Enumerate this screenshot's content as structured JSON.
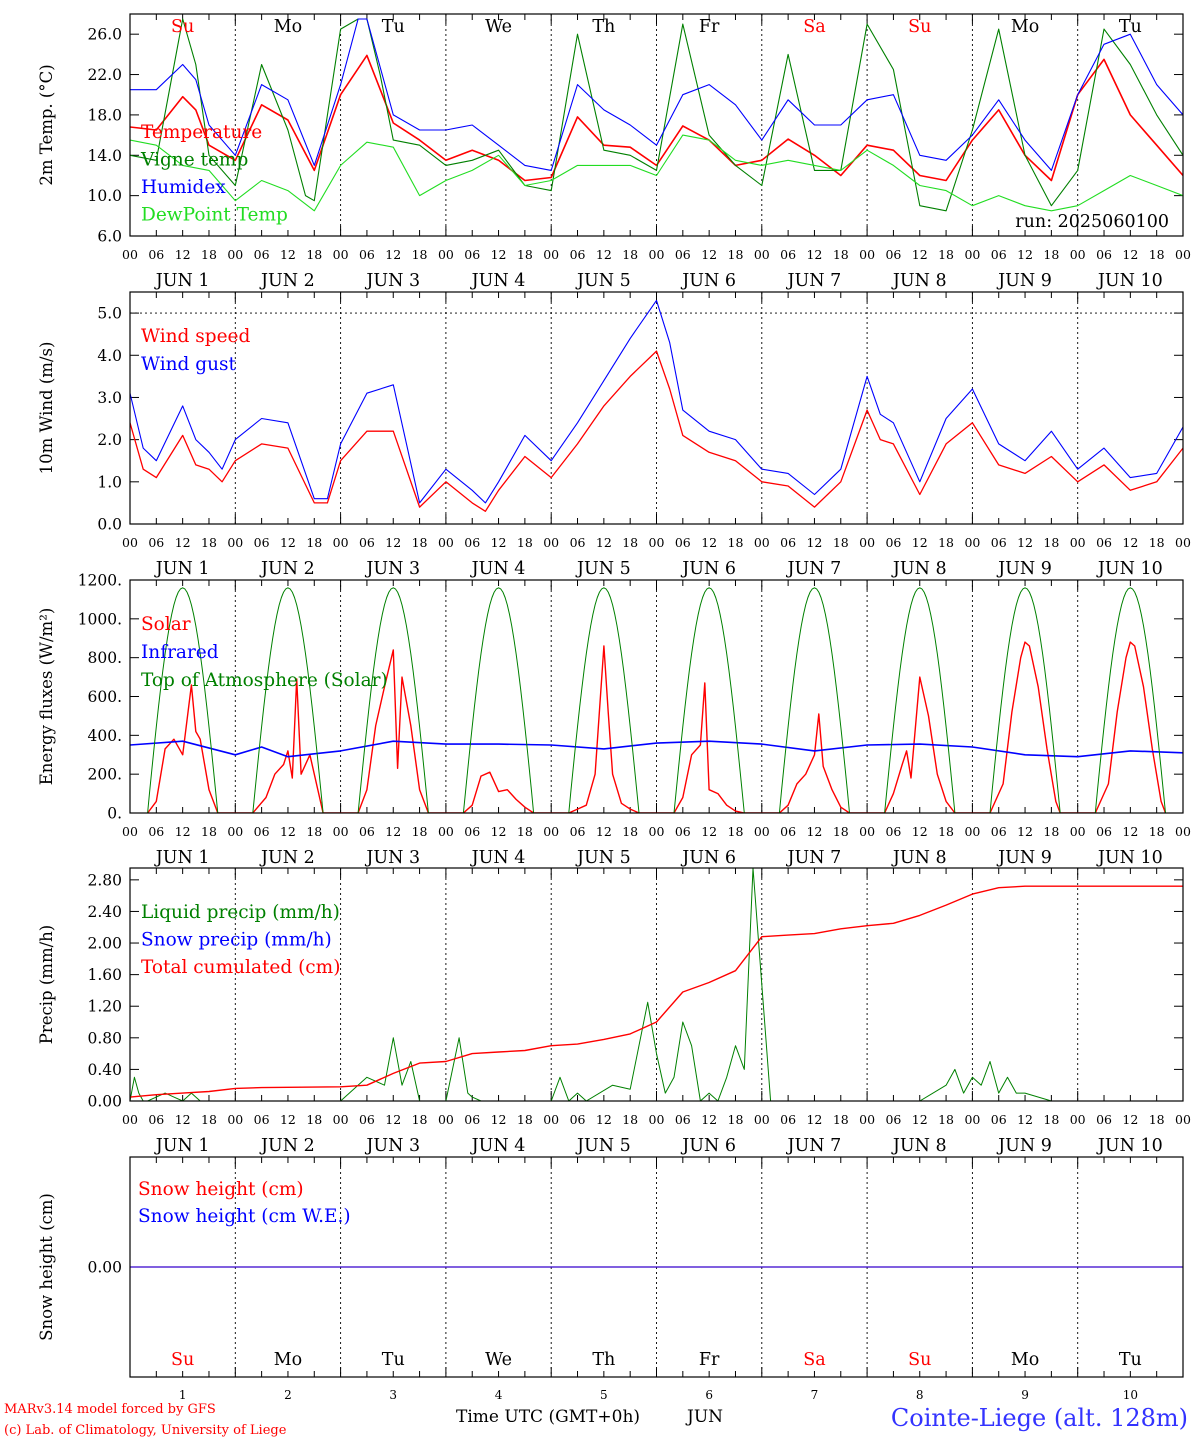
{
  "footer": {
    "credit_line1": "MARv3.14 model forced by GFS",
    "credit_line2": "(c) Lab. of Climatology, University of Liege",
    "xlabel": "Time UTC (GMT+0h)",
    "month": "JUN",
    "station": "Cointe-Liege (alt. 128m)"
  },
  "colors": {
    "red": "#ff0000",
    "green": "#008000",
    "blue": "#0000ff",
    "lightgreen": "#22dd22",
    "station": "#3333ff"
  },
  "time_axis": {
    "hour_ticks": [
      "00",
      "06",
      "12",
      "18"
    ],
    "day_labels": [
      "JUN  1",
      "JUN  2",
      "JUN  3",
      "JUN  4",
      "JUN  5",
      "JUN  6",
      "JUN  7",
      "JUN  8",
      "JUN  9",
      "JUN 10"
    ],
    "day_numbers": [
      "1",
      "2",
      "3",
      "4",
      "5",
      "6",
      "7",
      "8",
      "9",
      "10"
    ],
    "weekdays": [
      "Su",
      "Mo",
      "Tu",
      "We",
      "Th",
      "Fr",
      "Sa",
      "Su",
      "Mo",
      "Tu"
    ],
    "weekday_colors": [
      "red",
      "black",
      "black",
      "black",
      "black",
      "black",
      "red",
      "red",
      "black",
      "black"
    ]
  },
  "chart_data": [
    {
      "id": "temp",
      "type": "line",
      "ylabel": "2m Temp. (°C)",
      "ylim": [
        6,
        28
      ],
      "yticks": [
        "6.0",
        "10.0",
        "14.0",
        "18.0",
        "22.0",
        "26.0"
      ],
      "ytick_values": [
        6,
        10,
        14,
        18,
        22,
        26
      ],
      "annotation": "run: 2025060100",
      "x_unit": "hours since 2025-06-01 00 UTC",
      "series": [
        {
          "name": "Temperature",
          "color": "red",
          "width": 1.6,
          "x": [
            0,
            6,
            12,
            15,
            18,
            24,
            30,
            36,
            42,
            48,
            54,
            60,
            66,
            72,
            78,
            84,
            90,
            96,
            102,
            108,
            114,
            120,
            126,
            132,
            138,
            144,
            150,
            156,
            162,
            168,
            174,
            180,
            186,
            192,
            198,
            204,
            210,
            216,
            222,
            228,
            234,
            240
          ],
          "y": [
            16.8,
            16.5,
            19.8,
            18.5,
            15.0,
            13.5,
            19.0,
            17.5,
            12.5,
            20.0,
            23.9,
            17.2,
            15.5,
            13.5,
            14.5,
            13.5,
            11.5,
            11.8,
            17.8,
            15.0,
            14.8,
            13.0,
            16.9,
            15.5,
            13.0,
            13.5,
            15.6,
            14.0,
            12.0,
            15.0,
            14.5,
            12.0,
            11.5,
            15.5,
            18.5,
            14.0,
            11.5,
            20.0,
            23.5,
            18.0,
            15.0,
            12.0
          ]
        },
        {
          "name": "Vigne temp",
          "color": "green",
          "width": 1.1,
          "x": [
            0,
            6,
            12,
            15,
            18,
            24,
            30,
            36,
            40,
            42,
            48,
            52,
            54,
            57,
            60,
            66,
            72,
            78,
            84,
            90,
            96,
            102,
            108,
            114,
            120,
            126,
            132,
            138,
            144,
            150,
            156,
            162,
            168,
            174,
            180,
            186,
            192,
            198,
            204,
            210,
            216,
            222,
            228,
            234,
            240
          ],
          "y": [
            14.0,
            13.5,
            27.5,
            23.0,
            14.0,
            11.0,
            23.0,
            16.5,
            10.0,
            9.5,
            26.5,
            27.5,
            27.5,
            22.0,
            15.5,
            15.0,
            13.0,
            13.5,
            14.5,
            11.0,
            10.5,
            26.0,
            14.5,
            14.0,
            12.5,
            27.0,
            16.0,
            13.0,
            11.0,
            24.0,
            12.5,
            12.5,
            27.0,
            22.5,
            9.0,
            8.5,
            16.5,
            26.5,
            14.0,
            9.0,
            12.5,
            26.5,
            23.0,
            18.0,
            14.0
          ]
        },
        {
          "name": "Humidex",
          "color": "blue",
          "width": 1.1,
          "x": [
            0,
            6,
            12,
            15,
            18,
            24,
            30,
            36,
            42,
            48,
            52,
            54,
            60,
            66,
            72,
            78,
            84,
            90,
            96,
            102,
            108,
            114,
            120,
            126,
            132,
            138,
            144,
            150,
            156,
            162,
            168,
            174,
            180,
            186,
            192,
            198,
            204,
            210,
            216,
            222,
            228,
            234,
            240
          ],
          "y": [
            20.5,
            20.5,
            23.0,
            21.5,
            17.0,
            14.0,
            21.0,
            19.5,
            13.0,
            21.0,
            27.5,
            27.5,
            18.0,
            16.5,
            16.5,
            17.0,
            15.0,
            13.0,
            12.5,
            21.0,
            18.5,
            17.0,
            15.0,
            20.0,
            21.0,
            19.0,
            15.5,
            19.5,
            17.0,
            17.0,
            19.5,
            20.0,
            14.0,
            13.5,
            16.0,
            19.5,
            15.5,
            12.5,
            20.0,
            25.0,
            26.0,
            21.0,
            18.0
          ]
        },
        {
          "name": "DewPoint Temp",
          "color": "lightgreen",
          "width": 1.1,
          "x": [
            0,
            6,
            12,
            18,
            24,
            30,
            36,
            42,
            48,
            54,
            60,
            66,
            72,
            78,
            84,
            90,
            96,
            102,
            108,
            114,
            120,
            126,
            132,
            138,
            144,
            150,
            156,
            162,
            168,
            174,
            180,
            186,
            192,
            198,
            204,
            210,
            216,
            222,
            228,
            234,
            240
          ],
          "y": [
            15.5,
            15.0,
            13.0,
            12.5,
            9.5,
            11.5,
            10.5,
            8.5,
            13.0,
            15.3,
            14.8,
            10.0,
            11.5,
            12.5,
            14.0,
            11.0,
            11.5,
            13.0,
            13.0,
            13.0,
            12.0,
            16.0,
            15.5,
            13.5,
            13.0,
            13.5,
            13.0,
            12.5,
            14.5,
            13.0,
            11.0,
            10.5,
            9.0,
            10.0,
            9.0,
            8.5,
            9.0,
            10.5,
            12.0,
            11.0,
            10.0
          ]
        }
      ]
    },
    {
      "id": "wind",
      "type": "line",
      "ylabel": "10m Wind (m/s)",
      "ylim": [
        0,
        5.5
      ],
      "yticks": [
        "0.0",
        "1.0",
        "2.0",
        "3.0",
        "4.0",
        "5.0"
      ],
      "ytick_values": [
        0,
        1,
        2,
        3,
        4,
        5
      ],
      "reference_line": 5.0,
      "series": [
        {
          "name": "Wind speed",
          "color": "red",
          "width": 1.3,
          "x": [
            0,
            3,
            6,
            12,
            15,
            18,
            21,
            24,
            30,
            36,
            42,
            45,
            48,
            54,
            60,
            66,
            72,
            78,
            81,
            84,
            90,
            96,
            102,
            108,
            114,
            120,
            123,
            126,
            132,
            138,
            144,
            150,
            156,
            162,
            168,
            171,
            174,
            180,
            186,
            192,
            198,
            204,
            210,
            216,
            222,
            228,
            234,
            240
          ],
          "y": [
            2.4,
            1.3,
            1.1,
            2.1,
            1.4,
            1.3,
            1.0,
            1.5,
            1.9,
            1.8,
            0.5,
            0.5,
            1.5,
            2.2,
            2.2,
            0.4,
            1.0,
            0.5,
            0.3,
            0.8,
            1.6,
            1.1,
            1.9,
            2.8,
            3.5,
            4.1,
            3.2,
            2.1,
            1.7,
            1.5,
            1.0,
            0.9,
            0.4,
            1.0,
            2.7,
            2.0,
            1.9,
            0.7,
            1.9,
            2.4,
            1.4,
            1.2,
            1.6,
            1.0,
            1.4,
            0.8,
            1.0,
            1.8
          ]
        },
        {
          "name": "Wind gust",
          "color": "blue",
          "width": 1.1,
          "x": [
            0,
            3,
            6,
            12,
            15,
            18,
            21,
            24,
            30,
            36,
            42,
            45,
            48,
            54,
            60,
            66,
            72,
            78,
            81,
            84,
            90,
            96,
            102,
            108,
            114,
            120,
            123,
            126,
            132,
            138,
            144,
            150,
            156,
            162,
            168,
            171,
            174,
            180,
            186,
            192,
            198,
            204,
            210,
            216,
            222,
            228,
            234,
            240
          ],
          "y": [
            3.1,
            1.8,
            1.5,
            2.8,
            2.0,
            1.7,
            1.3,
            2.0,
            2.5,
            2.4,
            0.6,
            0.6,
            1.9,
            3.1,
            3.3,
            0.5,
            1.3,
            0.8,
            0.5,
            1.0,
            2.1,
            1.5,
            2.4,
            3.4,
            4.4,
            5.3,
            4.3,
            2.7,
            2.2,
            2.0,
            1.3,
            1.2,
            0.7,
            1.3,
            3.5,
            2.6,
            2.4,
            1.0,
            2.5,
            3.2,
            1.9,
            1.5,
            2.2,
            1.3,
            1.8,
            1.1,
            1.2,
            2.3
          ]
        }
      ]
    },
    {
      "id": "energy",
      "type": "line",
      "ylabel": "Energy fluxes (W/m²)",
      "ylim": [
        0,
        1200
      ],
      "yticks": [
        "0.",
        "200.",
        "400.",
        "600.",
        "800.",
        "1000.",
        "1200."
      ],
      "ytick_values": [
        0,
        200,
        400,
        600,
        800,
        1000,
        1200
      ],
      "toa_peak": 1160,
      "solar_peaks": [
        660,
        690,
        840,
        210,
        860,
        670,
        510,
        700,
        880,
        880
      ],
      "series": [
        {
          "name": "Solar",
          "color": "red",
          "width": 1.4
        },
        {
          "name": "Infrared",
          "color": "blue",
          "width": 1.6,
          "x": [
            0,
            12,
            24,
            30,
            36,
            48,
            60,
            72,
            84,
            96,
            108,
            120,
            132,
            144,
            156,
            168,
            180,
            192,
            204,
            216,
            228,
            240
          ],
          "y": [
            350,
            370,
            300,
            340,
            290,
            320,
            370,
            355,
            355,
            350,
            330,
            360,
            370,
            355,
            320,
            350,
            355,
            340,
            300,
            290,
            320,
            310
          ]
        },
        {
          "name": "Top of Atmosphere (Solar)",
          "color": "green",
          "width": 1.0
        }
      ]
    },
    {
      "id": "precip",
      "type": "line",
      "ylabel": "Precip (mm/h)",
      "ylim": [
        0,
        2.95
      ],
      "yticks": [
        "0.00",
        "0.40",
        "0.80",
        "1.20",
        "1.60",
        "2.00",
        "2.40",
        "2.80"
      ],
      "ytick_values": [
        0,
        0.4,
        0.8,
        1.2,
        1.6,
        2.0,
        2.4,
        2.8
      ],
      "series": [
        {
          "name": "Liquid precip (mm/h)",
          "color": "green",
          "width": 1.0,
          "x": [
            0,
            1,
            2,
            3,
            4,
            6,
            8,
            10,
            12,
            14,
            16,
            18,
            20,
            24,
            48,
            54,
            58,
            60,
            62,
            64,
            66,
            70,
            72,
            75,
            77,
            78,
            80,
            84,
            96,
            98,
            100,
            102,
            104,
            110,
            114,
            118,
            120,
            122,
            124,
            126,
            128,
            130,
            132,
            134,
            136,
            138,
            140,
            142,
            146,
            168,
            180,
            186,
            188,
            190,
            192,
            194,
            196,
            198,
            200,
            202,
            204,
            210,
            240
          ],
          "y": [
            0,
            0.3,
            0.1,
            0,
            0,
            0.05,
            0.1,
            0.05,
            0,
            0.1,
            0,
            0,
            0,
            0,
            0,
            0.3,
            0.2,
            0.8,
            0.2,
            0.5,
            0,
            0,
            0,
            0.8,
            0.1,
            0.05,
            0,
            0,
            0,
            0.3,
            0,
            0.1,
            0,
            0.2,
            0.15,
            1.25,
            0.6,
            0.1,
            0.3,
            1.0,
            0.7,
            0,
            0.1,
            0,
            0.3,
            0.7,
            0.4,
            2.95,
            0,
            0,
            0,
            0.2,
            0.4,
            0.1,
            0.3,
            0.2,
            0.5,
            0.1,
            0.3,
            0.1,
            0.1,
            0,
            0
          ]
        },
        {
          "name": "Snow precip (mm/h)",
          "color": "blue",
          "width": 1.0,
          "x": [
            0,
            240
          ],
          "y": [
            0.0,
            0.0
          ]
        },
        {
          "name": "Total cumulated (cm)",
          "color": "red",
          "width": 1.4,
          "x": [
            0,
            6,
            12,
            18,
            24,
            30,
            48,
            54,
            60,
            66,
            72,
            78,
            84,
            90,
            96,
            102,
            108,
            114,
            120,
            126,
            132,
            138,
            144,
            150,
            156,
            162,
            168,
            174,
            180,
            186,
            192,
            198,
            204,
            210,
            216,
            222,
            228,
            240
          ],
          "y": [
            0.05,
            0.08,
            0.1,
            0.12,
            0.16,
            0.17,
            0.18,
            0.2,
            0.35,
            0.48,
            0.5,
            0.6,
            0.62,
            0.64,
            0.7,
            0.72,
            0.78,
            0.85,
            1.0,
            1.38,
            1.5,
            1.65,
            2.08,
            2.1,
            2.12,
            2.18,
            2.22,
            2.25,
            2.35,
            2.48,
            2.62,
            2.7,
            2.72,
            2.72,
            2.72,
            2.72,
            2.72,
            2.72
          ]
        }
      ]
    },
    {
      "id": "snow",
      "type": "line",
      "ylabel": "Snow height (cm)",
      "ylim": [
        -1,
        1
      ],
      "yticks": [
        "0.00"
      ],
      "ytick_values": [
        0
      ],
      "series": [
        {
          "name": "Snow height (cm)",
          "color": "red",
          "width": 1.3,
          "x": [
            0,
            240
          ],
          "y": [
            0,
            0
          ]
        },
        {
          "name": "Snow height (cm W.E.)",
          "color": "blue",
          "width": 1.0,
          "x": [
            0,
            240
          ],
          "y": [
            0,
            0
          ]
        }
      ]
    }
  ]
}
